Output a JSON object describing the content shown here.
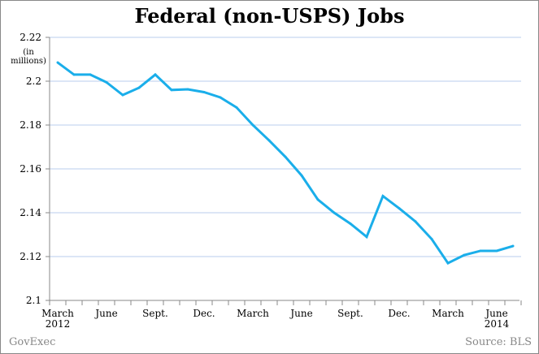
{
  "chart_data": {
    "type": "line",
    "title": "Federal (non-USPS) Jobs",
    "ylabel": "(in millions)",
    "xlabel": "",
    "ylim": [
      2.1,
      2.22
    ],
    "yticks": [
      "2.1",
      "2.12",
      "2.14",
      "2.16",
      "2.18",
      "2.2",
      "2.22"
    ],
    "ytick_values": [
      2.1,
      2.12,
      2.14,
      2.16,
      2.18,
      2.2,
      2.22
    ],
    "xtick_labels": [
      {
        "index": 0,
        "label": "March",
        "sub": "2012"
      },
      {
        "index": 3,
        "label": "June",
        "sub": ""
      },
      {
        "index": 6,
        "label": "Sept.",
        "sub": ""
      },
      {
        "index": 9,
        "label": "Dec.",
        "sub": ""
      },
      {
        "index": 12,
        "label": "March",
        "sub": ""
      },
      {
        "index": 15,
        "label": "June",
        "sub": ""
      },
      {
        "index": 18,
        "label": "Sept.",
        "sub": ""
      },
      {
        "index": 21,
        "label": "Dec.",
        "sub": ""
      },
      {
        "index": 24,
        "label": "March",
        "sub": ""
      },
      {
        "index": 27,
        "label": "June",
        "sub": "2014"
      }
    ],
    "grid": true,
    "series": [
      {
        "name": "Federal (non-USPS) Jobs",
        "color": "#1aaeea",
        "x": [
          "2012-03",
          "2012-04",
          "2012-05",
          "2012-06",
          "2012-07",
          "2012-08",
          "2012-09",
          "2012-10",
          "2012-11",
          "2012-12",
          "2013-01",
          "2013-02",
          "2013-03",
          "2013-04",
          "2013-05",
          "2013-06",
          "2013-07",
          "2013-08",
          "2013-09",
          "2013-10",
          "2013-11",
          "2013-12",
          "2014-01",
          "2014-02",
          "2014-03",
          "2014-04",
          "2014-05",
          "2014-06",
          "2014-07"
        ],
        "values": [
          2.2085,
          2.203,
          2.203,
          2.1995,
          2.1937,
          2.197,
          2.203,
          2.196,
          2.1963,
          2.195,
          2.1926,
          2.188,
          2.18,
          2.173,
          2.1655,
          2.157,
          2.146,
          2.14,
          2.135,
          2.129,
          2.1476,
          2.142,
          2.136,
          2.128,
          2.117,
          2.1207,
          2.1226,
          2.1226,
          2.1248
        ]
      }
    ]
  },
  "footer": {
    "brand": "GovExec",
    "source": "Source: BLS"
  },
  "colors": {
    "grid": "#b9cdee",
    "axis": "#888888"
  }
}
